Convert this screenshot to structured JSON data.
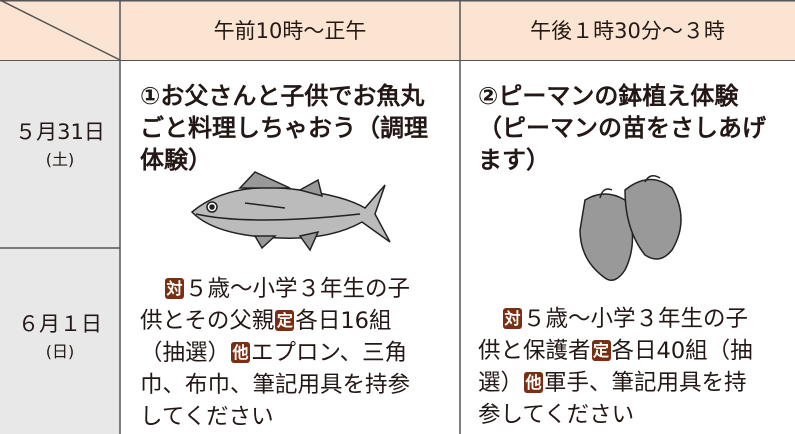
{
  "header": {
    "col1": "午前10時～正午",
    "col2": "午後１時30分～３時"
  },
  "dates": [
    {
      "date": "５月31日",
      "weekday": "(土)"
    },
    {
      "date": "６月１日",
      "weekday": "(日)"
    }
  ],
  "events": [
    {
      "title_lines": [
        "①お父さんと子供でお魚丸",
        "ごと料理しちゃおう（調理",
        "体験）"
      ],
      "body_lines": [
        [
          {
            "badge": "対"
          },
          {
            "text": "５歳～小学３年生の子"
          }
        ],
        [
          {
            "text": "供とその父親"
          },
          {
            "badge": "定"
          },
          {
            "text": "各日16組"
          }
        ],
        [
          {
            "text": "（抽選）"
          },
          {
            "badge": "他"
          },
          {
            "text": "エプロン、三角"
          }
        ],
        [
          {
            "text": "巾、布巾、筆記用具を持参"
          }
        ],
        [
          {
            "text": "してください"
          }
        ]
      ]
    },
    {
      "title_lines": [
        "②ピーマンの鉢植え体験",
        "（ピーマンの苗をさしあげ",
        "ます）"
      ],
      "body_lines": [
        [
          {
            "badge": "対"
          },
          {
            "text": "５歳～小学３年生の子"
          }
        ],
        [
          {
            "text": "供と保護者"
          },
          {
            "badge": "定"
          },
          {
            "text": "各日40組（抽"
          }
        ],
        [
          {
            "text": "選）"
          },
          {
            "badge": "他"
          },
          {
            "text": "軍手、筆記用具を持"
          }
        ],
        [
          {
            "text": "参してください"
          }
        ]
      ]
    }
  ]
}
